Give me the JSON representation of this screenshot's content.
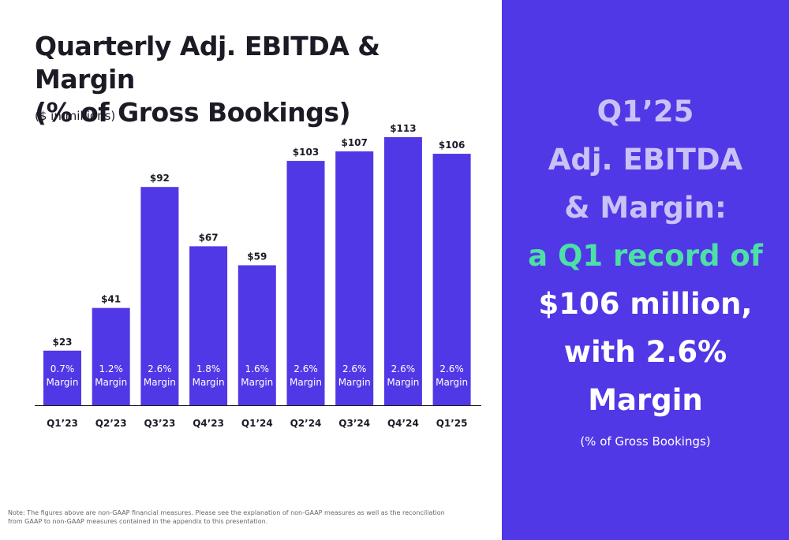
{
  "title_line1": "Quarterly Adj. EBITDA & Margin",
  "title_line2": "(% of Gross Bookings)",
  "units": "($ in millions)",
  "note": "Note: The figures above are non-GAAP financial measures. Please see the explanation of non-GAAP measures as well as the reconciliation from GAAP to non-GAAP measures contained in the appendix to this presentation.",
  "colors": {
    "bar": "#5138e6",
    "panel": "#5138e6",
    "accent": "#4de0a6",
    "muted": "#c9c2f7"
  },
  "panel": {
    "line1": "Q1’25",
    "line2": "Adj. EBITDA",
    "line3": "& Margin:",
    "line4": "a Q1 record of",
    "line5": "$106 million,",
    "line6": "with 2.6%",
    "line7": "Margin",
    "sub": "(% of Gross Bookings)"
  },
  "chart_data": {
    "type": "bar",
    "categories": [
      "Q1’23",
      "Q2’23",
      "Q3’23",
      "Q4’23",
      "Q1’24",
      "Q2’24",
      "Q3’24",
      "Q4’24",
      "Q1’25"
    ],
    "values": [
      23,
      41,
      92,
      67,
      59,
      103,
      107,
      113,
      106
    ],
    "value_labels": [
      "$23",
      "$41",
      "$92",
      "$67",
      "$59",
      "$103",
      "$107",
      "$113",
      "$106"
    ],
    "margins": [
      "0.7%",
      "1.2%",
      "2.6%",
      "1.8%",
      "1.6%",
      "2.6%",
      "2.6%",
      "2.6%",
      "2.6%"
    ],
    "margin_word": "Margin",
    "ylim": [
      0,
      113
    ]
  }
}
